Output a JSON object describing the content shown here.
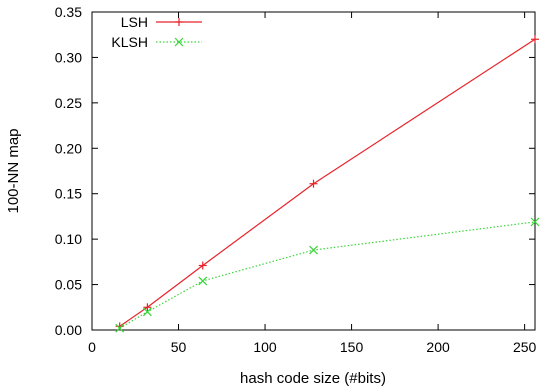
{
  "chart_data": {
    "type": "line",
    "title": "",
    "xlabel": "hash code size (#bits)",
    "ylabel": "100-NN map",
    "xlim": [
      0,
      256
    ],
    "ylim": [
      0,
      0.35
    ],
    "xticks": [
      0,
      50,
      100,
      150,
      200,
      250
    ],
    "xtick_labels": [
      "0",
      "50",
      "100",
      "150",
      "200",
      "250"
    ],
    "yticks": [
      0,
      0.05,
      0.1,
      0.15,
      0.2,
      0.25,
      0.3,
      0.35
    ],
    "ytick_labels": [
      "0.00",
      "0.05",
      "0.10",
      "0.15",
      "0.20",
      "0.25",
      "0.30",
      "0.35"
    ],
    "grid": false,
    "legend_position": "top-left",
    "series": [
      {
        "name": "LSH",
        "color": "#e8232a",
        "marker": "plus",
        "line_style": "solid",
        "x": [
          16,
          32,
          64,
          128,
          256
        ],
        "y": [
          0.004,
          0.025,
          0.071,
          0.161,
          0.32
        ]
      },
      {
        "name": "KLSH",
        "color": "#39d639",
        "marker": "cross",
        "line_style": "dotted",
        "x": [
          16,
          32,
          64,
          128,
          256
        ],
        "y": [
          0.002,
          0.02,
          0.054,
          0.088,
          0.119
        ]
      }
    ]
  }
}
